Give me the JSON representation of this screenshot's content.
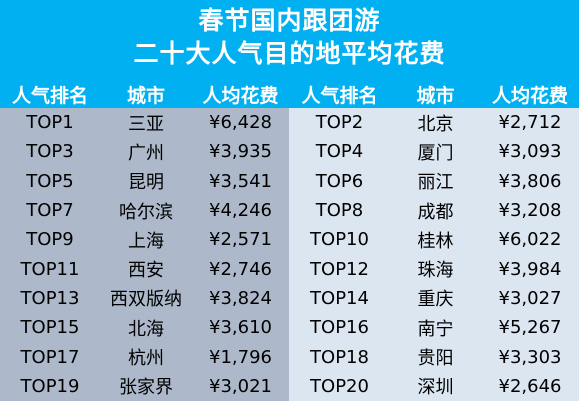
{
  "title": {
    "line1": "春节国内跟团游",
    "line2": "二十大人气目的地平均花费"
  },
  "headers": {
    "rank": "人气排名",
    "city": "城市",
    "cost": "人均花费"
  },
  "chart_data": {
    "type": "table",
    "title": "春节国内跟团游 二十大人气目的地平均花费",
    "columns": [
      "人气排名",
      "城市",
      "人均花费"
    ],
    "left_rows": [
      {
        "rank": "TOP1",
        "city": "三亚",
        "cost": "¥6,428"
      },
      {
        "rank": "TOP3",
        "city": "广州",
        "cost": "¥3,935"
      },
      {
        "rank": "TOP5",
        "city": "昆明",
        "cost": "¥3,541"
      },
      {
        "rank": "TOP7",
        "city": "哈尔滨",
        "cost": "¥4,246"
      },
      {
        "rank": "TOP9",
        "city": "上海",
        "cost": "¥2,571"
      },
      {
        "rank": "TOP11",
        "city": "西安",
        "cost": "¥2,746"
      },
      {
        "rank": "TOP13",
        "city": "西双版纳",
        "cost": "¥3,824"
      },
      {
        "rank": "TOP15",
        "city": "北海",
        "cost": "¥3,610"
      },
      {
        "rank": "TOP17",
        "city": "杭州",
        "cost": "¥1,796"
      },
      {
        "rank": "TOP19",
        "city": "张家界",
        "cost": "¥3,021"
      }
    ],
    "right_rows": [
      {
        "rank": "TOP2",
        "city": "北京",
        "cost": "¥2,712"
      },
      {
        "rank": "TOP4",
        "city": "厦门",
        "cost": "¥3,093"
      },
      {
        "rank": "TOP6",
        "city": "丽江",
        "cost": "¥3,806"
      },
      {
        "rank": "TOP8",
        "city": "成都",
        "cost": "¥3,208"
      },
      {
        "rank": "TOP10",
        "city": "桂林",
        "cost": "¥6,022"
      },
      {
        "rank": "TOP12",
        "city": "珠海",
        "cost": "¥3,984"
      },
      {
        "rank": "TOP14",
        "city": "重庆",
        "cost": "¥3,027"
      },
      {
        "rank": "TOP16",
        "city": "南宁",
        "cost": "¥5,267"
      },
      {
        "rank": "TOP18",
        "city": "贵阳",
        "cost": "¥3,303"
      },
      {
        "rank": "TOP20",
        "city": "深圳",
        "cost": "¥2,646"
      }
    ]
  },
  "colors": {
    "header_blue": "#00b0f0",
    "left_panel": "#adb9ca",
    "right_panel": "#dce6f1"
  }
}
